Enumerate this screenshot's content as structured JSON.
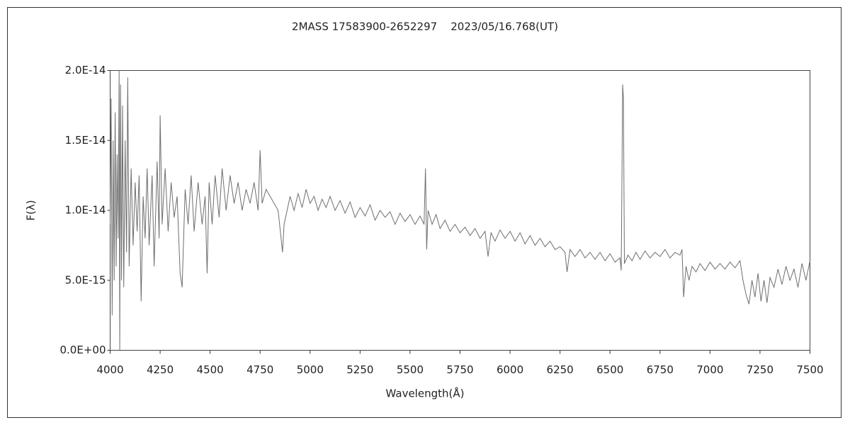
{
  "chart_data": {
    "type": "line",
    "title": "2MASS 17583900-2652297    2023/05/16.768(UT)",
    "xlabel": "Wavelength(Å)",
    "ylabel": "F(λ)",
    "xlim": [
      4000,
      7500
    ],
    "xticks": [
      4000,
      4250,
      4500,
      4750,
      5000,
      5250,
      5500,
      5750,
      6000,
      6250,
      6500,
      6750,
      7000,
      7250,
      7500
    ],
    "ylim": [
      0,
      2e-14
    ],
    "yticks": [
      {
        "value": 0,
        "label": "0.0E+00"
      },
      {
        "value": 5e-15,
        "label": "5.0E-15"
      },
      {
        "value": 1e-14,
        "label": "1.0E-14"
      },
      {
        "value": 1.5e-14,
        "label": "1.5E-14"
      },
      {
        "value": 2e-14,
        "label": "2.0E-14"
      }
    ],
    "grid": false,
    "series": [
      {
        "name": "F(λ)",
        "color": "#6e6e6e",
        "x": [
          4000,
          4005,
          4010,
          4015,
          4020,
          4025,
          4030,
          4035,
          4040,
          4045,
          4048,
          4052,
          4057,
          4062,
          4068,
          4075,
          4082,
          4088,
          4095,
          4105,
          4115,
          4125,
          4135,
          4145,
          4155,
          4165,
          4175,
          4185,
          4195,
          4210,
          4220,
          4235,
          4245,
          4250,
          4260,
          4275,
          4290,
          4305,
          4320,
          4335,
          4350,
          4360,
          4375,
          4390,
          4405,
          4420,
          4440,
          4460,
          4475,
          4485,
          4495,
          4510,
          4525,
          4545,
          4560,
          4580,
          4600,
          4620,
          4640,
          4660,
          4680,
          4700,
          4720,
          4740,
          4750,
          4760,
          4780,
          4800,
          4820,
          4840,
          4855,
          4862,
          4870,
          4885,
          4900,
          4920,
          4940,
          4960,
          4980,
          5000,
          5020,
          5040,
          5060,
          5080,
          5100,
          5125,
          5150,
          5175,
          5200,
          5225,
          5250,
          5275,
          5300,
          5325,
          5350,
          5375,
          5400,
          5425,
          5450,
          5475,
          5500,
          5525,
          5550,
          5570,
          5577,
          5583,
          5590,
          5610,
          5630,
          5650,
          5675,
          5700,
          5725,
          5750,
          5775,
          5800,
          5825,
          5850,
          5875,
          5890,
          5905,
          5925,
          5950,
          5975,
          6000,
          6025,
          6050,
          6075,
          6100,
          6125,
          6150,
          6175,
          6200,
          6225,
          6250,
          6275,
          6285,
          6300,
          6325,
          6350,
          6375,
          6400,
          6425,
          6450,
          6475,
          6500,
          6525,
          6550,
          6556,
          6560,
          6563,
          6567,
          6572,
          6590,
          6610,
          6630,
          6650,
          6675,
          6700,
          6725,
          6750,
          6775,
          6800,
          6825,
          6850,
          6860,
          6868,
          6880,
          6895,
          6910,
          6930,
          6950,
          6975,
          7000,
          7025,
          7050,
          7075,
          7100,
          7125,
          7150,
          7165,
          7180,
          7195,
          7210,
          7225,
          7240,
          7255,
          7270,
          7285,
          7300,
          7320,
          7340,
          7360,
          7380,
          7400,
          7420,
          7440,
          7460,
          7480,
          7500
        ],
        "values": [
          9e-15,
          1.8e-14,
          2.5e-15,
          1.5e-14,
          5e-15,
          1.7e-14,
          6e-15,
          1.4e-14,
          8e-15,
          2e-14,
          0,
          1.9e-14,
          5e-15,
          1.75e-14,
          4.5e-15,
          1.5e-14,
          7e-15,
          1.95e-14,
          6e-15,
          1.3e-14,
          7.5e-15,
          1.2e-14,
          8.5e-15,
          1.25e-14,
          3.5e-15,
          1.1e-14,
          8e-15,
          1.3e-14,
          7.5e-15,
          1.25e-14,
          6e-15,
          1.35e-14,
          8e-15,
          1.68e-14,
          9e-15,
          1.3e-14,
          8.5e-15,
          1.2e-14,
          9.5e-15,
          1.1e-14,
          5.5e-15,
          4.5e-15,
          1.15e-14,
          9e-15,
          1.25e-14,
          8.5e-15,
          1.2e-14,
          9e-15,
          1.1e-14,
          5.5e-15,
          1.2e-14,
          9e-15,
          1.25e-14,
          9.5e-15,
          1.3e-14,
          1e-14,
          1.25e-14,
          1.05e-14,
          1.2e-14,
          1e-14,
          1.15e-14,
          1.05e-14,
          1.2e-14,
          1e-14,
          1.43e-14,
          1.05e-14,
          1.15e-14,
          1.1e-14,
          1.05e-14,
          1e-14,
          8e-15,
          7e-15,
          9e-15,
          1e-14,
          1.1e-14,
          1e-14,
          1.12e-14,
          1.02e-14,
          1.15e-14,
          1.05e-14,
          1.1e-14,
          1e-14,
          1.08e-14,
          1.02e-14,
          1.1e-14,
          1e-14,
          1.07e-14,
          9.8e-15,
          1.06e-14,
          9.5e-15,
          1.02e-14,
          9.6e-15,
          1.04e-14,
          9.3e-15,
          1e-14,
          9.5e-15,
          9.9e-15,
          9e-15,
          9.8e-15,
          9.2e-15,
          9.7e-15,
          9e-15,
          9.6e-15,
          9e-15,
          1.3e-14,
          7.2e-15,
          1e-14,
          9e-15,
          9.7e-15,
          8.7e-15,
          9.3e-15,
          8.5e-15,
          9e-15,
          8.4e-15,
          8.8e-15,
          8.2e-15,
          8.7e-15,
          8e-15,
          8.5e-15,
          6.7e-15,
          8.4e-15,
          7.8e-15,
          8.6e-15,
          8e-15,
          8.5e-15,
          7.8e-15,
          8.4e-15,
          7.6e-15,
          8.2e-15,
          7.5e-15,
          8e-15,
          7.4e-15,
          7.8e-15,
          7.2e-15,
          7.4e-15,
          7e-15,
          5.6e-15,
          7.2e-15,
          6.7e-15,
          7.2e-15,
          6.6e-15,
          7e-15,
          6.5e-15,
          7e-15,
          6.4e-15,
          6.9e-15,
          6.3e-15,
          6.6e-15,
          5.7e-15,
          1.3e-14,
          1.9e-14,
          1.8e-14,
          6.2e-15,
          6.8e-15,
          6.4e-15,
          7e-15,
          6.5e-15,
          7.1e-15,
          6.6e-15,
          7e-15,
          6.7e-15,
          7.2e-15,
          6.6e-15,
          7e-15,
          6.8e-15,
          7.2e-15,
          3.8e-15,
          6e-15,
          5e-15,
          6e-15,
          5.6e-15,
          6.2e-15,
          5.7e-15,
          6.3e-15,
          5.8e-15,
          6.2e-15,
          5.8e-15,
          6.3e-15,
          5.9e-15,
          6.4e-15,
          5e-15,
          4e-15,
          3.3e-15,
          5e-15,
          3.8e-15,
          5.5e-15,
          3.5e-15,
          5e-15,
          3.4e-15,
          5.2e-15,
          4.5e-15,
          5.8e-15,
          4.7e-15,
          6e-15,
          5e-15,
          5.8e-15,
          4.5e-15,
          6.2e-15,
          5e-15,
          6.4e-15
        ]
      }
    ]
  }
}
